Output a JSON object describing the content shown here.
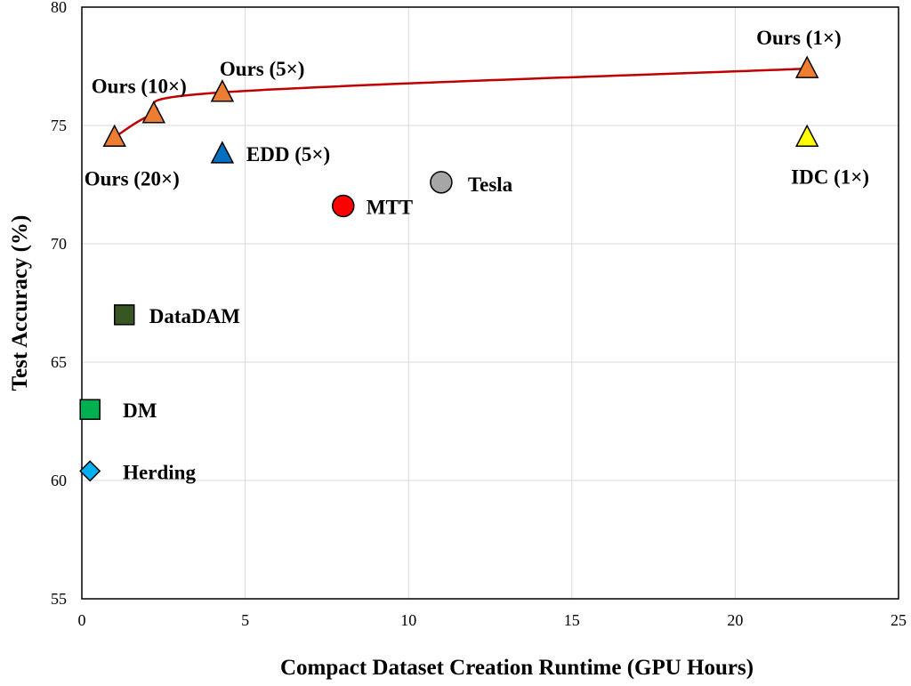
{
  "chart_data": {
    "type": "scatter",
    "title": "",
    "xlabel": "Compact Dataset Creation Runtime (GPU Hours)",
    "ylabel": "Test Accuracy (%)",
    "xlim": [
      0,
      25
    ],
    "ylim": [
      55,
      80
    ],
    "x_ticks": [
      "0",
      "5",
      "10",
      "15",
      "20",
      "25"
    ],
    "y_ticks": [
      "55",
      "60",
      "65",
      "70",
      "75",
      "80"
    ],
    "grid": true,
    "line_color": "#c00000",
    "series": [
      {
        "label": "Ours",
        "marker": "triangle",
        "color": "#ed7d31",
        "connected": true,
        "points": [
          {
            "label": "Ours (20×)",
            "x": 1.0,
            "y": 74.5
          },
          {
            "label": "Ours (10×)",
            "x": 2.2,
            "y": 75.5
          },
          {
            "label": "Ours (5×)",
            "x": 4.3,
            "y": 76.4
          },
          {
            "label": "Ours (1×)",
            "x": 22.2,
            "y": 77.4
          }
        ]
      },
      {
        "label": "EDD (5×)",
        "marker": "triangle",
        "color": "#0070c0",
        "points": [
          {
            "label": "EDD (5×)",
            "x": 4.3,
            "y": 73.8
          }
        ]
      },
      {
        "label": "IDC (1×)",
        "marker": "triangle",
        "color": "#ffff00",
        "points": [
          {
            "label": "IDC (1×)",
            "x": 22.2,
            "y": 74.5
          }
        ]
      },
      {
        "label": "Tesla",
        "marker": "circle",
        "color": "#a6a6a6",
        "points": [
          {
            "label": "Tesla",
            "x": 11.0,
            "y": 72.6
          }
        ]
      },
      {
        "label": "MTT",
        "marker": "circle",
        "color": "#ff0000",
        "points": [
          {
            "label": "MTT",
            "x": 8.0,
            "y": 71.6
          }
        ]
      },
      {
        "label": "DataDAM",
        "marker": "square",
        "color": "#375623",
        "points": [
          {
            "label": "DataDAM",
            "x": 1.3,
            "y": 67.0
          }
        ]
      },
      {
        "label": "DM",
        "marker": "square",
        "color": "#00b050",
        "points": [
          {
            "label": "DM",
            "x": 0.25,
            "y": 63.0
          }
        ]
      },
      {
        "label": "Herding",
        "marker": "diamond",
        "color": "#00b0f0",
        "points": [
          {
            "label": "Herding",
            "x": 0.25,
            "y": 60.4
          }
        ]
      }
    ]
  }
}
